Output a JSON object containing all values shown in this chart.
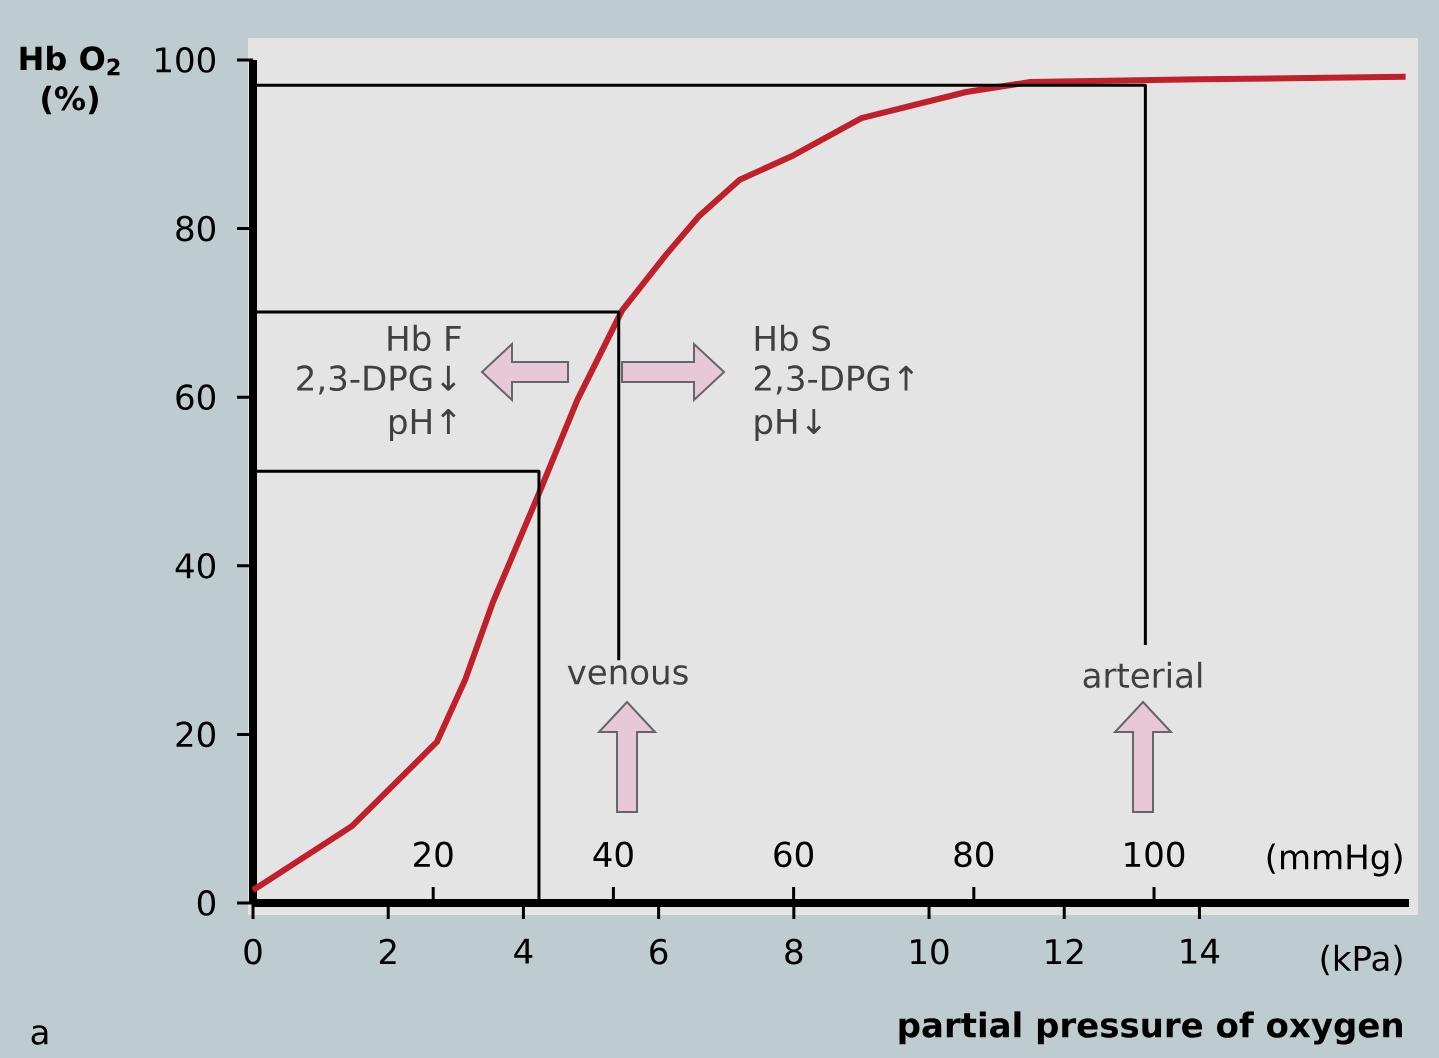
{
  "chart_data": {
    "type": "line",
    "ylabel": "Hb O$_{2}$ (%)",
    "xlabel": "partial pressure of oxygen",
    "x2label": "(mmHg)",
    "xlim": [
      0,
      17.1
    ],
    "xticks": [
      0,
      2,
      4,
      6,
      8,
      10,
      12,
      14
    ],
    "x2lim": [
      0,
      128.3
    ],
    "x2ticks": [
      20,
      40,
      60,
      80,
      100
    ],
    "ylim": [
      0,
      100
    ],
    "yticks": [
      0,
      20,
      40,
      60,
      80,
      100
    ],
    "series": [
      {
        "color": "#c0202a",
        "x": [
          0,
          1.46,
          2.72,
          3.14,
          3.55,
          4.22,
          4.8,
          5.46,
          6.12,
          6.6,
          7.2,
          8.0,
          9.0,
          10.55,
          11.5,
          14,
          17.05
        ],
        "values": [
          1.5,
          9.1,
          19.1,
          26.5,
          35.7,
          48.4,
          59.7,
          70.3,
          77.0,
          81.5,
          85.8,
          88.7,
          93.1,
          96.2,
          97.4,
          97.7,
          98.0
        ]
      },
      {
        "color": "#000000",
        "x": [
          0,
          13.2,
          13.2
        ],
        "values": [
          97,
          97,
          30.6
        ]
      },
      {
        "color": "#000000",
        "x": [
          0,
          5.41,
          5.41
        ],
        "values": [
          70.1,
          70.1,
          28.8
        ]
      },
      {
        "color": "#000000",
        "x": [
          0,
          4.23,
          4.23
        ],
        "values": [
          51.2,
          51.2,
          0
        ]
      }
    ],
    "annotations": [
      "Hb F",
      "2,3-DPG↓",
      "pH↑",
      "Hb S",
      "2,3-DPG↑",
      "pH↓",
      "venous",
      "arterial",
      "(kPa)",
      "a"
    ]
  }
}
